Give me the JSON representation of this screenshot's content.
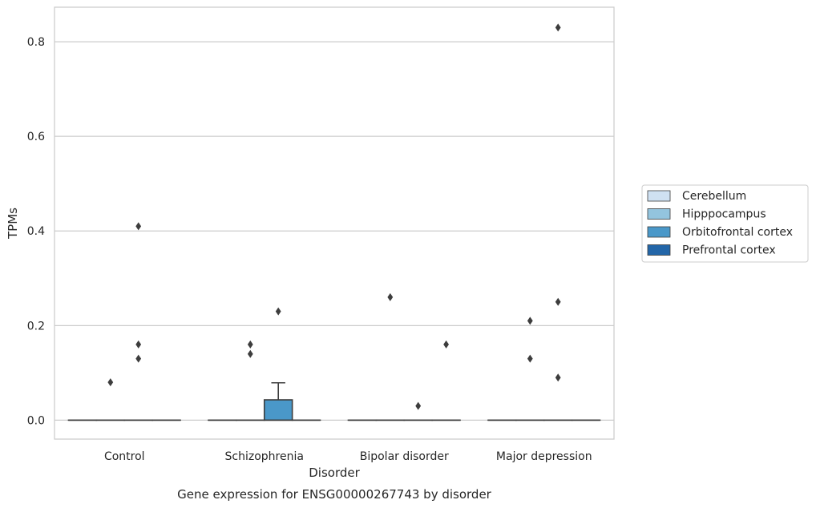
{
  "chart_data": {
    "type": "box",
    "title": "Gene expression for ENSG00000267743 by disorder",
    "xlabel": "Disorder",
    "ylabel": "TPMs",
    "ylim": [
      -0.04,
      0.873
    ],
    "yticks": [
      0.0,
      0.2,
      0.4,
      0.6,
      0.8
    ],
    "ytick_labels": [
      "0.0",
      "0.2",
      "0.4",
      "0.6",
      "0.8"
    ],
    "grid": "horizontal",
    "legend_position": "right",
    "categories": [
      "Control",
      "Schizophrenia",
      "Bipolar disorder",
      "Major depression"
    ],
    "series": [
      {
        "name": "Cerebellum",
        "color": "#cfe1f2",
        "boxes": [
          {
            "category": "Control",
            "min": 0,
            "q1": 0,
            "median": 0,
            "q3": 0,
            "max": 0,
            "outliers": []
          },
          {
            "category": "Schizophrenia",
            "min": 0,
            "q1": 0,
            "median": 0,
            "q3": 0,
            "max": 0,
            "outliers": []
          },
          {
            "category": "Bipolar disorder",
            "min": 0,
            "q1": 0,
            "median": 0,
            "q3": 0,
            "max": 0,
            "outliers": []
          },
          {
            "category": "Major depression",
            "min": 0,
            "q1": 0,
            "median": 0,
            "q3": 0,
            "max": 0,
            "outliers": []
          }
        ]
      },
      {
        "name": "Hipppocampus",
        "color": "#93c4de",
        "boxes": [
          {
            "category": "Control",
            "min": 0,
            "q1": 0,
            "median": 0,
            "q3": 0,
            "max": 0,
            "outliers": [
              0.08
            ]
          },
          {
            "category": "Schizophrenia",
            "min": 0,
            "q1": 0,
            "median": 0,
            "q3": 0,
            "max": 0,
            "outliers": [
              0.14,
              0.16
            ]
          },
          {
            "category": "Bipolar disorder",
            "min": 0,
            "q1": 0,
            "median": 0,
            "q3": 0,
            "max": 0,
            "outliers": [
              0.26
            ]
          },
          {
            "category": "Major depression",
            "min": 0,
            "q1": 0,
            "median": 0,
            "q3": 0,
            "max": 0,
            "outliers": [
              0.13,
              0.21
            ]
          }
        ]
      },
      {
        "name": "Orbitofrontal cortex",
        "color": "#4a98c9",
        "boxes": [
          {
            "category": "Control",
            "min": 0,
            "q1": 0,
            "median": 0,
            "q3": 0,
            "max": 0,
            "outliers": [
              0.13,
              0.16,
              0.41
            ]
          },
          {
            "category": "Schizophrenia",
            "min": 0,
            "q1": 0,
            "median": 0,
            "q3": 0.043,
            "max": 0.079,
            "outliers": [
              0.23
            ]
          },
          {
            "category": "Bipolar disorder",
            "min": 0,
            "q1": 0,
            "median": 0,
            "q3": 0,
            "max": 0,
            "outliers": [
              0.03
            ]
          },
          {
            "category": "Major depression",
            "min": 0,
            "q1": 0,
            "median": 0,
            "q3": 0,
            "max": 0,
            "outliers": [
              0.09,
              0.25,
              0.83
            ]
          }
        ]
      },
      {
        "name": "Prefrontal cortex",
        "color": "#2366a8",
        "boxes": [
          {
            "category": "Control",
            "min": 0,
            "q1": 0,
            "median": 0,
            "q3": 0,
            "max": 0,
            "outliers": []
          },
          {
            "category": "Schizophrenia",
            "min": 0,
            "q1": 0,
            "median": 0,
            "q3": 0,
            "max": 0,
            "outliers": []
          },
          {
            "category": "Bipolar disorder",
            "min": 0,
            "q1": 0,
            "median": 0,
            "q3": 0,
            "max": 0,
            "outliers": [
              0.16
            ]
          },
          {
            "category": "Major depression",
            "min": 0,
            "q1": 0,
            "median": 0,
            "q3": 0,
            "max": 0,
            "outliers": []
          }
        ]
      }
    ]
  }
}
